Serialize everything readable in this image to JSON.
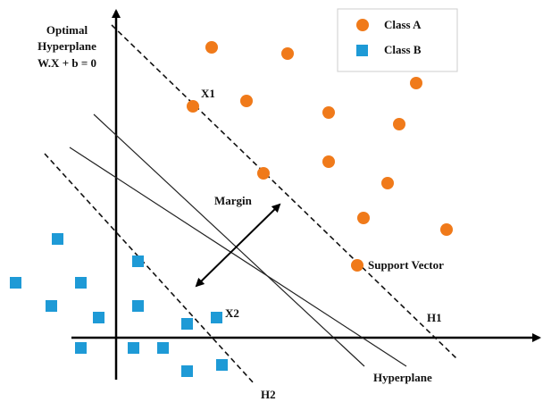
{
  "title": {
    "lines": [
      "Optimal",
      "Hyperplane",
      "W.X + b = 0"
    ]
  },
  "legend": {
    "items": [
      {
        "label": "Class A"
      },
      {
        "label": "Class B"
      }
    ]
  },
  "annotations": {
    "x1": "X1",
    "x2": "X2",
    "margin": "Margin",
    "support_vector": "Support Vector",
    "h1": "H1",
    "h2": "H2",
    "hyperplane": "Hyperplane"
  }
}
